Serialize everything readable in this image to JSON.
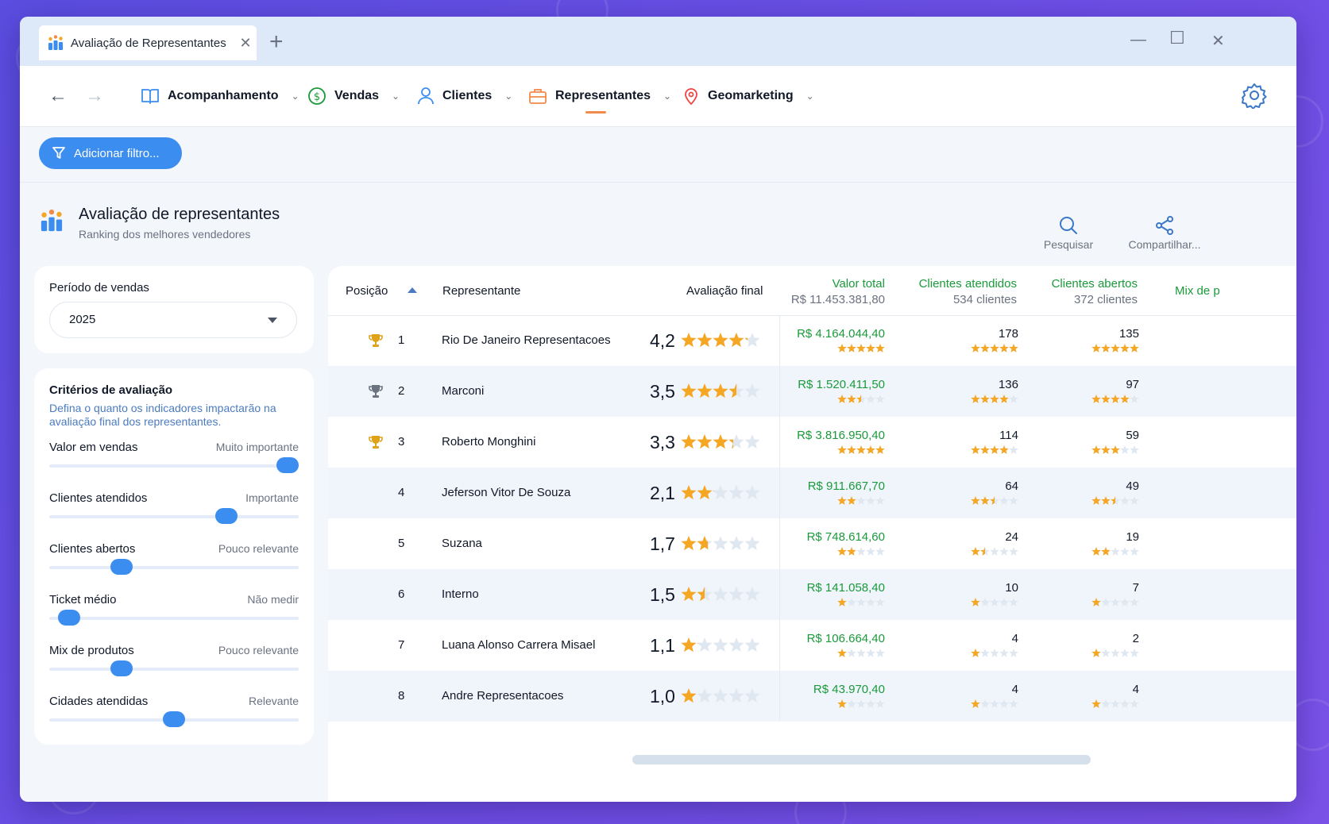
{
  "window": {
    "tab_title": "Avaliação de Representantes",
    "tab_icon": "ranking-chart-icon"
  },
  "nav": {
    "menus": [
      {
        "label": "Acompanhamento",
        "icon": "book-icon"
      },
      {
        "label": "Vendas",
        "icon": "dollar-circle-icon"
      },
      {
        "label": "Clientes",
        "icon": "user-icon"
      },
      {
        "label": "Representantes",
        "icon": "briefcase-icon",
        "active": true
      },
      {
        "label": "Geomarketing",
        "icon": "map-pin-icon"
      }
    ]
  },
  "filter": {
    "add_label": "Adicionar filtro..."
  },
  "page": {
    "title": "Avaliação de representantes",
    "subtitle": "Ranking dos melhores vendedores",
    "actions": {
      "search": "Pesquisar",
      "share": "Compartilhar..."
    }
  },
  "period": {
    "label": "Período de vendas",
    "value": "2025"
  },
  "criteria": {
    "title": "Critérios de avaliação",
    "description": "Defina o quanto os indicadores impactarão na avaliação final dos representantes.",
    "items": [
      {
        "name": "Valor em vendas",
        "level": "Muito importante",
        "fraction": 1.0
      },
      {
        "name": "Clientes atendidos",
        "level": "Importante",
        "fraction": 0.73
      },
      {
        "name": "Clientes abertos",
        "level": "Pouco relevante",
        "fraction": 0.27
      },
      {
        "name": "Ticket médio",
        "level": "Não medir",
        "fraction": 0.04
      },
      {
        "name": "Mix de produtos",
        "level": "Pouco relevante",
        "fraction": 0.27
      },
      {
        "name": "Cidades atendidas",
        "level": "Relevante",
        "fraction": 0.5
      }
    ]
  },
  "table": {
    "headers": {
      "position": "Posição",
      "rep": "Representante",
      "rating": "Avaliação final",
      "total": {
        "title": "Valor total",
        "sub": "R$ 11.453.381,80"
      },
      "served": {
        "title": "Clientes atendidos",
        "sub": "534 clientes"
      },
      "opened": {
        "title": "Clientes abertos",
        "sub": "372 clientes"
      },
      "mix": {
        "title": "Mix de p"
      }
    },
    "rows": [
      {
        "pos": "1",
        "trophy": "gold",
        "name": "Rio De Janeiro Representacoes",
        "score": "4,2",
        "rating": 4.2,
        "total": "R$ 4.164.044,40",
        "total_stars": 5,
        "served": "178",
        "served_stars": 5,
        "opened": "135",
        "opened_stars": 5
      },
      {
        "pos": "2",
        "trophy": "silver",
        "name": "Marconi",
        "score": "3,5",
        "rating": 3.5,
        "total": "R$ 1.520.411,50",
        "total_stars": 2.5,
        "served": "136",
        "served_stars": 4,
        "opened": "97",
        "opened_stars": 4
      },
      {
        "pos": "3",
        "trophy": "bronze",
        "name": "Roberto Monghini",
        "score": "3,3",
        "rating": 3.3,
        "total": "R$ 3.816.950,40",
        "total_stars": 5,
        "served": "114",
        "served_stars": 4,
        "opened": "59",
        "opened_stars": 3
      },
      {
        "pos": "4",
        "trophy": "",
        "name": "Jeferson Vitor De Souza",
        "score": "2,1",
        "rating": 2.1,
        "total": "R$ 911.667,70",
        "total_stars": 2,
        "served": "64",
        "served_stars": 2.5,
        "opened": "49",
        "opened_stars": 2.5
      },
      {
        "pos": "5",
        "trophy": "",
        "name": "Suzana",
        "score": "1,7",
        "rating": 1.7,
        "total": "R$ 748.614,60",
        "total_stars": 2,
        "served": "24",
        "served_stars": 1.5,
        "opened": "19",
        "opened_stars": 2
      },
      {
        "pos": "6",
        "trophy": "",
        "name": "Interno",
        "score": "1,5",
        "rating": 1.5,
        "total": "R$ 141.058,40",
        "total_stars": 1,
        "served": "10",
        "served_stars": 1,
        "opened": "7",
        "opened_stars": 1
      },
      {
        "pos": "7",
        "trophy": "",
        "name": "Luana Alonso Carrera Misael",
        "score": "1,1",
        "rating": 1.1,
        "total": "R$ 106.664,40",
        "total_stars": 1,
        "served": "4",
        "served_stars": 1,
        "opened": "2",
        "opened_stars": 1
      },
      {
        "pos": "8",
        "trophy": "",
        "name": "Andre Representacoes",
        "score": "1,0",
        "rating": 1.0,
        "total": "R$ 43.970,40",
        "total_stars": 1,
        "served": "4",
        "served_stars": 1,
        "opened": "4",
        "opened_stars": 1
      }
    ]
  },
  "colors": {
    "accent": "#3b8df0",
    "star": "#f5a623",
    "star_empty": "#dfe7f1",
    "money": "#1a9a3a",
    "gold": "#e0a21a",
    "silver": "#6b7280"
  }
}
